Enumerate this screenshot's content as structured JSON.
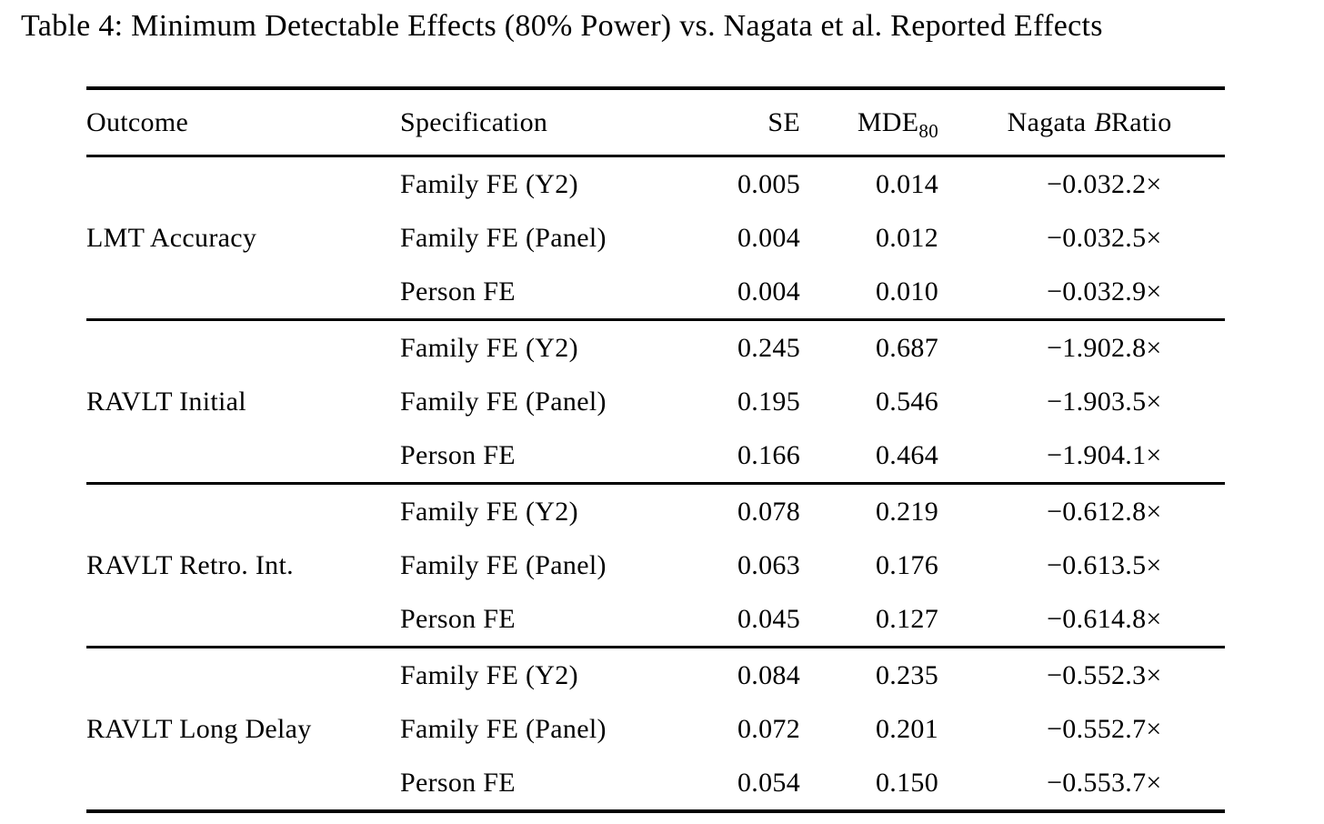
{
  "title": "Table 4: Minimum Detectable Effects (80% Power) vs. Nagata et al. Reported Effects",
  "table": {
    "headers": {
      "outcome": "Outcome",
      "specification": "Specification",
      "se": "SE",
      "mde_label": "MDE",
      "mde_sub": "80",
      "nagata_label": "Nagata",
      "nagata_var": "B",
      "ratio": "Ratio"
    },
    "groups": [
      {
        "outcome": "LMT Accuracy",
        "rows": [
          {
            "specification": "Family FE (Y2)",
            "se": "0.005",
            "mde": "0.014",
            "nagata": "−0.03",
            "ratio": "2.2×"
          },
          {
            "specification": "Family FE (Panel)",
            "se": "0.004",
            "mde": "0.012",
            "nagata": "−0.03",
            "ratio": "2.5×"
          },
          {
            "specification": "Person FE",
            "se": "0.004",
            "mde": "0.010",
            "nagata": "−0.03",
            "ratio": "2.9×"
          }
        ]
      },
      {
        "outcome": "RAVLT Initial",
        "rows": [
          {
            "specification": "Family FE (Y2)",
            "se": "0.245",
            "mde": "0.687",
            "nagata": "−1.90",
            "ratio": "2.8×"
          },
          {
            "specification": "Family FE (Panel)",
            "se": "0.195",
            "mde": "0.546",
            "nagata": "−1.90",
            "ratio": "3.5×"
          },
          {
            "specification": "Person FE",
            "se": "0.166",
            "mde": "0.464",
            "nagata": "−1.90",
            "ratio": "4.1×"
          }
        ]
      },
      {
        "outcome": "RAVLT Retro. Int.",
        "rows": [
          {
            "specification": "Family FE (Y2)",
            "se": "0.078",
            "mde": "0.219",
            "nagata": "−0.61",
            "ratio": "2.8×"
          },
          {
            "specification": "Family FE (Panel)",
            "se": "0.063",
            "mde": "0.176",
            "nagata": "−0.61",
            "ratio": "3.5×"
          },
          {
            "specification": "Person FE",
            "se": "0.045",
            "mde": "0.127",
            "nagata": "−0.61",
            "ratio": "4.8×"
          }
        ]
      },
      {
        "outcome": "RAVLT Long Delay",
        "rows": [
          {
            "specification": "Family FE (Y2)",
            "se": "0.084",
            "mde": "0.235",
            "nagata": "−0.55",
            "ratio": "2.3×"
          },
          {
            "specification": "Family FE (Panel)",
            "se": "0.072",
            "mde": "0.201",
            "nagata": "−0.55",
            "ratio": "2.7×"
          },
          {
            "specification": "Person FE",
            "se": "0.054",
            "mde": "0.150",
            "nagata": "−0.55",
            "ratio": "3.7×"
          }
        ]
      }
    ]
  }
}
